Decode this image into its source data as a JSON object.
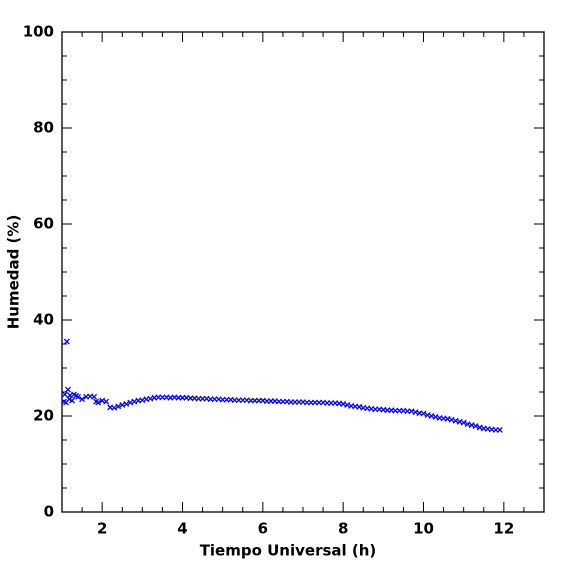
{
  "chart_data": {
    "type": "scatter",
    "xlabel": "Tiempo Universal (h)",
    "ylabel": "Humedad (%)",
    "color": "#0000ff",
    "marker": "x",
    "xlim": [
      1,
      13
    ],
    "ylim": [
      0,
      100
    ],
    "xticks": [
      2,
      4,
      6,
      8,
      10,
      12
    ],
    "yticks": [
      0,
      20,
      40,
      60,
      80,
      100
    ],
    "minor_xticks": [
      1,
      1.5,
      2.5,
      3,
      3.5,
      4.5,
      5,
      5.5,
      6.5,
      7,
      7.5,
      8.5,
      9,
      9.5,
      10.5,
      11,
      11.5,
      12.5
    ],
    "minor_yticks": [
      5,
      10,
      15,
      25,
      30,
      35,
      45,
      50,
      55,
      65,
      70,
      75,
      85,
      90,
      95
    ],
    "x": [
      1.05,
      1.07,
      1.1,
      1.12,
      1.15,
      1.18,
      1.2,
      1.25,
      1.3,
      1.35,
      1.4,
      1.5,
      1.6,
      1.7,
      1.8,
      1.85,
      1.9,
      2.0,
      2.1,
      2.2,
      2.3,
      2.4,
      2.5,
      2.6,
      2.7,
      2.8,
      2.9,
      3.0,
      3.1,
      3.2,
      3.3,
      3.4,
      3.5,
      3.6,
      3.7,
      3.8,
      3.9,
      4.0,
      4.1,
      4.2,
      4.3,
      4.4,
      4.5,
      4.6,
      4.7,
      4.8,
      4.9,
      5.0,
      5.1,
      5.2,
      5.3,
      5.4,
      5.5,
      5.6,
      5.7,
      5.8,
      5.9,
      6.0,
      6.1,
      6.2,
      6.3,
      6.4,
      6.5,
      6.6,
      6.7,
      6.8,
      6.9,
      7.0,
      7.1,
      7.2,
      7.3,
      7.4,
      7.5,
      7.6,
      7.7,
      7.8,
      7.9,
      8.0,
      8.1,
      8.2,
      8.3,
      8.4,
      8.5,
      8.6,
      8.7,
      8.8,
      8.9,
      9.0,
      9.1,
      9.2,
      9.3,
      9.4,
      9.5,
      9.6,
      9.7,
      9.8,
      9.9,
      10.0,
      10.1,
      10.2,
      10.3,
      10.4,
      10.5,
      10.6,
      10.7,
      10.8,
      10.9,
      11.0,
      11.1,
      11.2,
      11.3,
      11.4,
      11.5,
      11.6,
      11.7,
      11.8,
      11.9
    ],
    "values": [
      23.0,
      24.5,
      22.8,
      35.5,
      25.5,
      23.5,
      24.3,
      23.2,
      24.5,
      24.2,
      24.0,
      23.5,
      24.0,
      24.1,
      24.0,
      23.0,
      22.8,
      23.2,
      23.0,
      21.8,
      21.7,
      22.0,
      22.3,
      22.5,
      22.8,
      23.0,
      23.2,
      23.3,
      23.5,
      23.6,
      23.8,
      23.9,
      23.9,
      23.9,
      23.8,
      23.9,
      23.8,
      23.8,
      23.8,
      23.7,
      23.7,
      23.6,
      23.6,
      23.6,
      23.5,
      23.5,
      23.5,
      23.4,
      23.4,
      23.4,
      23.3,
      23.3,
      23.3,
      23.3,
      23.2,
      23.2,
      23.2,
      23.2,
      23.1,
      23.1,
      23.1,
      23.0,
      23.0,
      23.0,
      22.9,
      22.9,
      22.9,
      22.9,
      22.8,
      22.8,
      22.8,
      22.8,
      22.8,
      22.7,
      22.7,
      22.7,
      22.6,
      22.5,
      22.3,
      22.1,
      22.0,
      21.9,
      21.7,
      21.6,
      21.5,
      21.4,
      21.4,
      21.3,
      21.2,
      21.2,
      21.1,
      21.1,
      21.1,
      21.0,
      21.0,
      20.8,
      20.6,
      20.5,
      20.2,
      20.0,
      19.8,
      19.6,
      19.5,
      19.4,
      19.2,
      19.0,
      18.8,
      18.6,
      18.3,
      18.1,
      17.9,
      17.6,
      17.4,
      17.3,
      17.2,
      17.1,
      17.1
    ]
  }
}
